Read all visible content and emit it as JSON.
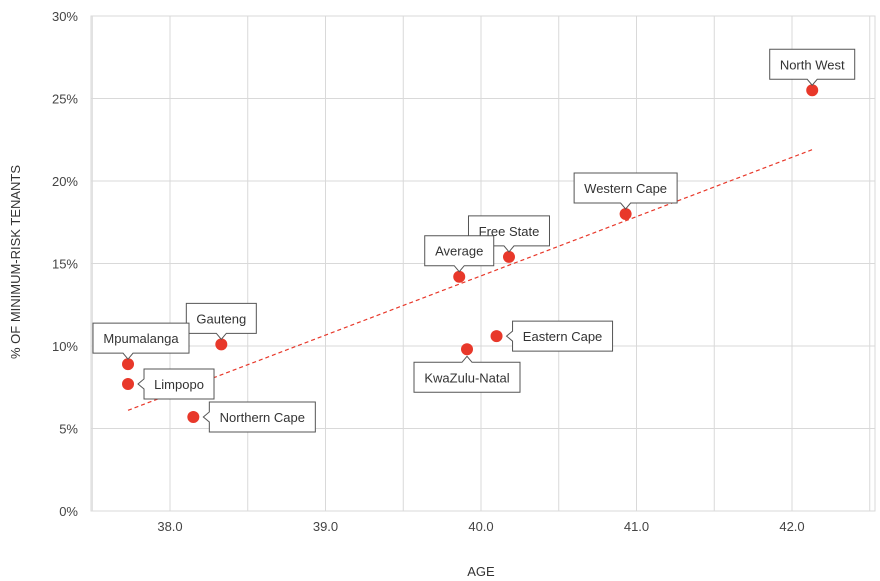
{
  "chart_data": {
    "type": "scatter",
    "title": "",
    "xlabel": "AGE",
    "ylabel": "% OF MINIMUM-RISK TENANTS",
    "xlim": [
      37.5,
      42.5
    ],
    "ylim": [
      0,
      30
    ],
    "x_ticks": [
      38.0,
      39.0,
      40.0,
      41.0,
      42.0
    ],
    "x_tick_labels": [
      "38.0",
      "39.0",
      "40.0",
      "41.0",
      "42.0"
    ],
    "y_ticks": [
      0,
      5,
      10,
      15,
      20,
      25,
      30
    ],
    "y_tick_labels": [
      "0%",
      "5%",
      "10%",
      "15%",
      "20%",
      "25%",
      "30%"
    ],
    "grid": true,
    "point_color": "#e8382a",
    "trendline_color": "#e8382a",
    "grid_color": "#d9d9d9",
    "points": [
      {
        "label": "North West",
        "x": 42.13,
        "y": 25.5,
        "label_pos": "above"
      },
      {
        "label": "Western Cape",
        "x": 40.93,
        "y": 18.0,
        "label_pos": "above"
      },
      {
        "label": "Free State",
        "x": 40.18,
        "y": 15.4,
        "label_pos": "above"
      },
      {
        "label": "Average",
        "x": 39.86,
        "y": 14.2,
        "label_pos": "above"
      },
      {
        "label": "Gauteng",
        "x": 38.33,
        "y": 10.1,
        "label_pos": "above"
      },
      {
        "label": "Eastern Cape",
        "x": 40.1,
        "y": 10.6,
        "label_pos": "right"
      },
      {
        "label": "KwaZulu-Natal",
        "x": 39.91,
        "y": 9.8,
        "label_pos": "below"
      },
      {
        "label": "Mpumalanga",
        "x": 37.73,
        "y": 8.9,
        "label_pos": "above"
      },
      {
        "label": "Limpopo",
        "x": 37.73,
        "y": 7.7,
        "label_pos": "right"
      },
      {
        "label": "Northern Cape",
        "x": 38.15,
        "y": 5.7,
        "label_pos": "right"
      }
    ],
    "trendline": {
      "x": [
        37.73,
        42.13
      ],
      "y": [
        6.1,
        21.9
      ],
      "style": "dashed"
    }
  }
}
